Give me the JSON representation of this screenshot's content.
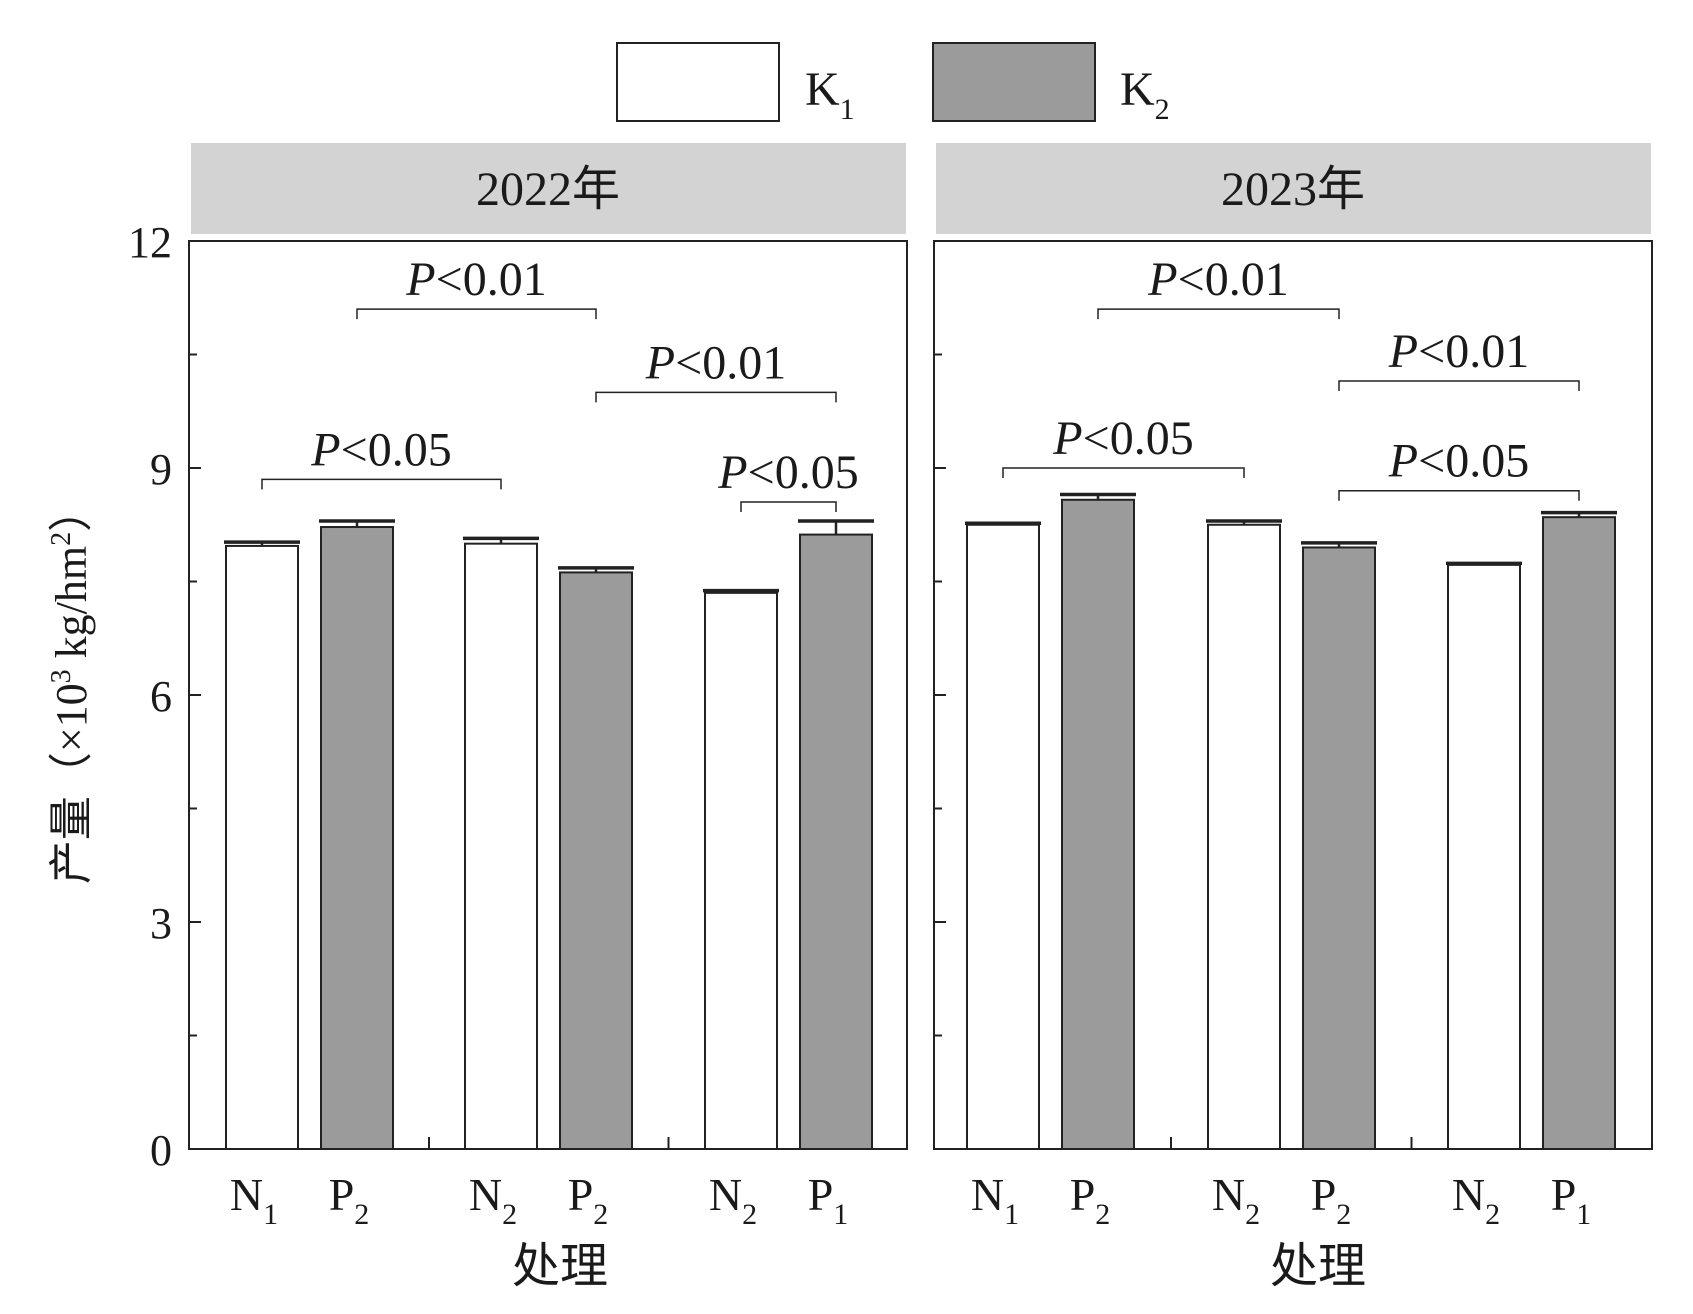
{
  "legend": [
    {
      "base": "K",
      "sub": "1",
      "color": "#ffffff"
    },
    {
      "base": "K",
      "sub": "2",
      "color": "#9b9b9b"
    }
  ],
  "y_axis": {
    "label_parts": {
      "prefix": "产量（×10",
      "sup": "3",
      "middle": " kg/hm",
      "sup2": "2",
      "suffix": "）"
    },
    "ticks": [
      "0",
      "3",
      "6",
      "9",
      "12"
    ]
  },
  "x_label": "处理",
  "colors": {
    "k1": "#ffffff",
    "k2": "#9b9b9b",
    "panel_header": "#d3d3d3",
    "axis": "#222222"
  },
  "chart_data": [
    {
      "type": "bar",
      "title": "2022年",
      "xlabel": "处理",
      "ylabel": "产量（×10³ kg/hm²）",
      "ylim": [
        0,
        12
      ],
      "yticks": [
        0,
        3,
        6,
        9,
        12
      ],
      "categories": [
        {
          "base": "N",
          "sub": "1",
          "series": "K1"
        },
        {
          "base": "P",
          "sub": "2",
          "series": "K2"
        },
        {
          "base": "N",
          "sub": "2",
          "series": "K1"
        },
        {
          "base": "P",
          "sub": "2",
          "series": "K2"
        },
        {
          "base": "N",
          "sub": "2",
          "series": "K1"
        },
        {
          "base": "P",
          "sub": "1",
          "series": "K2"
        }
      ],
      "values": [
        7.97,
        8.22,
        8.0,
        7.62,
        7.35,
        8.12
      ],
      "errors": [
        0.05,
        0.08,
        0.07,
        0.06,
        0.03,
        0.18
      ],
      "annotations": [
        {
          "text_italic": "P",
          "text": "<0.01",
          "from": 1,
          "to": 3,
          "y": 11.1
        },
        {
          "text_italic": "P",
          "text": "<0.01",
          "from": 3,
          "to": 5,
          "y": 10.0
        },
        {
          "text_italic": "P",
          "text": "<0.05",
          "from": 0,
          "to": 2,
          "y": 8.85
        },
        {
          "text_italic": "P",
          "text": "<0.05",
          "from": 4,
          "to": 5,
          "y": 8.55
        }
      ]
    },
    {
      "type": "bar",
      "title": "2023年",
      "xlabel": "处理",
      "ylabel": "产量（×10³ kg/hm²）",
      "ylim": [
        0,
        12
      ],
      "yticks": [
        0,
        3,
        6,
        9,
        12
      ],
      "categories": [
        {
          "base": "N",
          "sub": "1",
          "series": "K1"
        },
        {
          "base": "P",
          "sub": "2",
          "series": "K2"
        },
        {
          "base": "N",
          "sub": "2",
          "series": "K1"
        },
        {
          "base": "P",
          "sub": "2",
          "series": "K2"
        },
        {
          "base": "N",
          "sub": "2",
          "series": "K1"
        },
        {
          "base": "P",
          "sub": "1",
          "series": "K2"
        }
      ],
      "values": [
        8.25,
        8.58,
        8.25,
        7.95,
        7.72,
        8.35
      ],
      "errors": [
        0.02,
        0.07,
        0.05,
        0.06,
        0.02,
        0.06
      ],
      "annotations": [
        {
          "text_italic": "P",
          "text": "<0.01",
          "from": 1,
          "to": 3,
          "y": 11.1
        },
        {
          "text_italic": "P",
          "text": "<0.01",
          "from": 3,
          "to": 5,
          "y": 10.15
        },
        {
          "text_italic": "P",
          "text": "<0.05",
          "from": 0,
          "to": 2,
          "y": 9.0
        },
        {
          "text_italic": "P",
          "text": "<0.05",
          "from": 3,
          "to": 5,
          "y": 8.7
        }
      ]
    }
  ]
}
